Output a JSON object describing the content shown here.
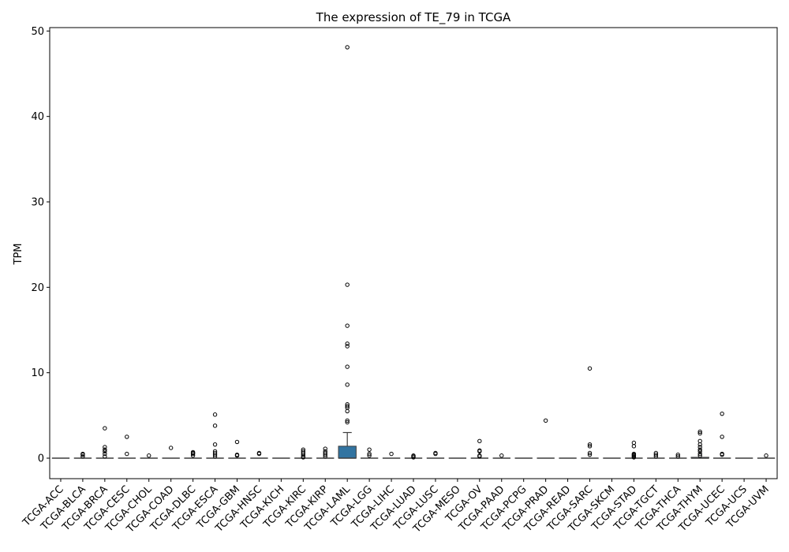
{
  "chart_data": {
    "type": "box",
    "title": "The expression of TE_79 in TCGA",
    "ylabel": "TPM",
    "xlabel": "",
    "ylim": [
      -2.4,
      50.4
    ],
    "yticks": [
      0,
      10,
      20,
      30,
      40,
      50
    ],
    "grid": false,
    "legend": "none",
    "box_color": "#3274a1",
    "categories": [
      "TCGA-ACC",
      "TCGA-BLCA",
      "TCGA-BRCA",
      "TCGA-CESC",
      "TCGA-CHOL",
      "TCGA-COAD",
      "TCGA-DLBC",
      "TCGA-ESCA",
      "TCGA-GBM",
      "TCGA-HNSC",
      "TCGA-KICH",
      "TCGA-KIRC",
      "TCGA-KIRP",
      "TCGA-LAML",
      "TCGA-LGG",
      "TCGA-LIHC",
      "TCGA-LUAD",
      "TCGA-LUSC",
      "TCGA-MESO",
      "TCGA-OV",
      "TCGA-PAAD",
      "TCGA-PCPG",
      "TCGA-PRAD",
      "TCGA-READ",
      "TCGA-SARC",
      "TCGA-SKCM",
      "TCGA-STAD",
      "TCGA-TGCT",
      "TCGA-THCA",
      "TCGA-THYM",
      "TCGA-UCEC",
      "TCGA-UCS",
      "TCGA-UVM"
    ],
    "boxes": [
      {
        "q1": 0,
        "median": 0,
        "q3": 0,
        "whislo": 0,
        "whishi": 0,
        "fliers": []
      },
      {
        "q1": 0,
        "median": 0,
        "q3": 0,
        "whislo": 0,
        "whishi": 0,
        "fliers": [
          0.2,
          0.4,
          0.5
        ]
      },
      {
        "q1": 0,
        "median": 0,
        "q3": 0,
        "whislo": 0,
        "whishi": 0,
        "fliers": [
          0.2,
          0.5,
          0.8,
          1.0,
          1.3,
          3.5
        ]
      },
      {
        "q1": 0,
        "median": 0,
        "q3": 0,
        "whislo": 0,
        "whishi": 0,
        "fliers": [
          0.5,
          2.5
        ]
      },
      {
        "q1": 0,
        "median": 0,
        "q3": 0,
        "whislo": 0,
        "whishi": 0,
        "fliers": [
          0.3
        ]
      },
      {
        "q1": 0,
        "median": 0,
        "q3": 0,
        "whislo": 0,
        "whishi": 0,
        "fliers": [
          1.2
        ]
      },
      {
        "q1": 0,
        "median": 0,
        "q3": 0,
        "whislo": 0,
        "whishi": 0,
        "fliers": [
          0.3,
          0.5,
          0.6,
          0.7
        ]
      },
      {
        "q1": 0,
        "median": 0,
        "q3": 0,
        "whislo": 0,
        "whishi": 0,
        "fliers": [
          0.2,
          0.4,
          0.6,
          0.8,
          1.6,
          3.8,
          5.1
        ]
      },
      {
        "q1": 0,
        "median": 0,
        "q3": 0,
        "whislo": 0,
        "whishi": 0,
        "fliers": [
          0.3,
          0.4,
          1.9
        ]
      },
      {
        "q1": 0,
        "median": 0,
        "q3": 0,
        "whislo": 0,
        "whishi": 0,
        "fliers": [
          0.5,
          0.6
        ]
      },
      {
        "q1": 0,
        "median": 0,
        "q3": 0,
        "whislo": 0,
        "whishi": 0,
        "fliers": []
      },
      {
        "q1": 0,
        "median": 0,
        "q3": 0,
        "whislo": 0,
        "whishi": 0,
        "fliers": [
          0.1,
          0.2,
          0.4,
          0.6,
          0.8,
          1.0
        ]
      },
      {
        "q1": 0,
        "median": 0,
        "q3": 0,
        "whislo": 0,
        "whishi": 0,
        "fliers": [
          0.2,
          0.4,
          0.6,
          0.8,
          1.1
        ]
      },
      {
        "q1": 0,
        "median": 0,
        "q3": 1.4,
        "whislo": 0,
        "whishi": 3.0,
        "fliers": [
          4.2,
          4.4,
          5.5,
          5.9,
          6.1,
          6.3,
          8.6,
          10.7,
          13.1,
          13.4,
          15.5,
          20.3,
          48.1
        ]
      },
      {
        "q1": 0,
        "median": 0,
        "q3": 0,
        "whislo": 0,
        "whishi": 0,
        "fliers": [
          0.3,
          0.5,
          1.0
        ]
      },
      {
        "q1": 0,
        "median": 0,
        "q3": 0,
        "whislo": 0,
        "whishi": 0,
        "fliers": [
          0.5
        ]
      },
      {
        "q1": 0,
        "median": 0,
        "q3": 0,
        "whislo": 0,
        "whishi": 0,
        "fliers": [
          0.1,
          0.2,
          0.3
        ]
      },
      {
        "q1": 0,
        "median": 0,
        "q3": 0,
        "whislo": 0,
        "whishi": 0,
        "fliers": [
          0.5,
          0.6
        ]
      },
      {
        "q1": 0,
        "median": 0,
        "q3": 0,
        "whislo": 0,
        "whishi": 0,
        "fliers": []
      },
      {
        "q1": 0,
        "median": 0,
        "q3": 0,
        "whislo": 0,
        "whishi": 0,
        "fliers": [
          0.2,
          0.3,
          0.8,
          0.9,
          2.0
        ]
      },
      {
        "q1": 0,
        "median": 0,
        "q3": 0,
        "whislo": 0,
        "whishi": 0,
        "fliers": [
          0.3
        ]
      },
      {
        "q1": 0,
        "median": 0,
        "q3": 0,
        "whislo": 0,
        "whishi": 0,
        "fliers": []
      },
      {
        "q1": 0,
        "median": 0,
        "q3": 0,
        "whislo": 0,
        "whishi": 0,
        "fliers": [
          4.4
        ]
      },
      {
        "q1": 0,
        "median": 0,
        "q3": 0,
        "whislo": 0,
        "whishi": 0,
        "fliers": []
      },
      {
        "q1": 0,
        "median": 0,
        "q3": 0,
        "whislo": 0,
        "whishi": 0,
        "fliers": [
          0.4,
          0.6,
          1.4,
          1.6,
          10.5
        ]
      },
      {
        "q1": 0,
        "median": 0,
        "q3": 0,
        "whislo": 0,
        "whishi": 0,
        "fliers": []
      },
      {
        "q1": 0,
        "median": 0,
        "q3": 0,
        "whislo": 0,
        "whishi": 0,
        "fliers": [
          0.1,
          0.2,
          0.3,
          0.4,
          0.5,
          1.4,
          1.8
        ]
      },
      {
        "q1": 0,
        "median": 0,
        "q3": 0,
        "whislo": 0,
        "whishi": 0,
        "fliers": [
          0.2,
          0.4,
          0.6
        ]
      },
      {
        "q1": 0,
        "median": 0,
        "q3": 0,
        "whislo": 0,
        "whishi": 0,
        "fliers": [
          0.2,
          0.4
        ]
      },
      {
        "q1": 0,
        "median": 0,
        "q3": 0.1,
        "whislo": 0,
        "whishi": 0.1,
        "fliers": [
          0.3,
          0.5,
          0.8,
          1.0,
          1.3,
          1.6,
          2.0,
          2.9,
          3.1
        ]
      },
      {
        "q1": 0,
        "median": 0,
        "q3": 0,
        "whislo": 0,
        "whishi": 0,
        "fliers": [
          0.4,
          0.5,
          2.5,
          5.2
        ]
      },
      {
        "q1": 0,
        "median": 0,
        "q3": 0,
        "whislo": 0,
        "whishi": 0,
        "fliers": []
      },
      {
        "q1": 0,
        "median": 0,
        "q3": 0,
        "whislo": 0,
        "whishi": 0,
        "fliers": [
          0.3
        ]
      }
    ]
  }
}
